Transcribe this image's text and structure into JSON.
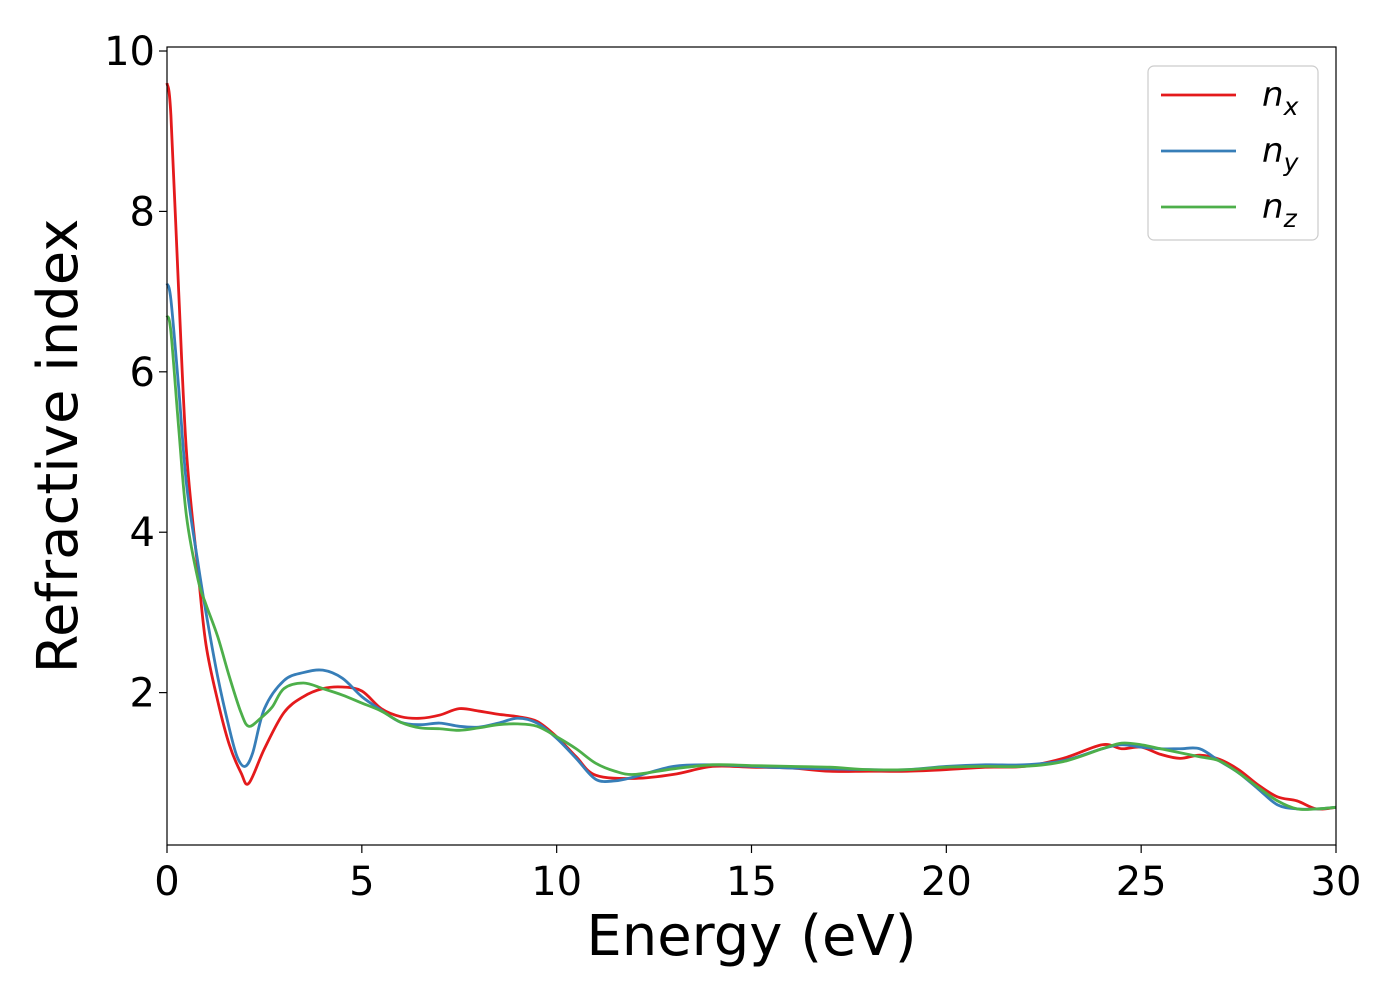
{
  "chart_data": {
    "type": "line",
    "xlabel": "Energy (eV)",
    "ylabel": "Refractive index",
    "xlim": [
      0,
      30
    ],
    "ylim": [
      0.1,
      10.05
    ],
    "xticks": [
      0,
      5,
      10,
      15,
      20,
      25,
      30
    ],
    "yticks": [
      2,
      4,
      6,
      8,
      10
    ],
    "grid": false,
    "legend_position": "top-right",
    "series": [
      {
        "name": "n",
        "subscript": "x",
        "color": "#e41a1c",
        "x": [
          0,
          0.1,
          0.3,
          0.5,
          0.8,
          1.0,
          1.3,
          1.6,
          1.9,
          2.1,
          2.5,
          3.0,
          3.5,
          4.0,
          4.5,
          5.0,
          5.5,
          6.0,
          6.5,
          7.0,
          7.5,
          8.0,
          8.5,
          9.0,
          9.5,
          10.0,
          10.5,
          11.0,
          12.0,
          13.0,
          14.0,
          15.0,
          16.0,
          17.0,
          18.0,
          19.0,
          20.0,
          21.0,
          22.0,
          23.0,
          24.0,
          24.5,
          25.0,
          25.5,
          26.0,
          26.5,
          27.0,
          27.5,
          28.0,
          28.5,
          29.0,
          29.5,
          30.0
        ],
        "y": [
          9.6,
          9.2,
          7.0,
          5.0,
          3.5,
          2.6,
          1.9,
          1.35,
          1.0,
          0.87,
          1.3,
          1.75,
          1.95,
          2.05,
          2.07,
          2.02,
          1.8,
          1.7,
          1.68,
          1.72,
          1.8,
          1.77,
          1.73,
          1.7,
          1.64,
          1.45,
          1.2,
          0.97,
          0.93,
          0.98,
          1.08,
          1.07,
          1.06,
          1.02,
          1.02,
          1.02,
          1.04,
          1.07,
          1.08,
          1.18,
          1.35,
          1.3,
          1.32,
          1.23,
          1.18,
          1.22,
          1.17,
          1.04,
          0.85,
          0.7,
          0.65,
          0.55,
          0.57
        ]
      },
      {
        "name": "n",
        "subscript": "y",
        "color": "#377eb8",
        "x": [
          0,
          0.1,
          0.3,
          0.5,
          0.8,
          1.0,
          1.3,
          1.6,
          1.8,
          2.0,
          2.2,
          2.5,
          3.0,
          3.5,
          4.0,
          4.5,
          5.0,
          5.5,
          6.0,
          6.5,
          7.0,
          7.5,
          8.0,
          8.5,
          9.0,
          9.5,
          10.0,
          10.5,
          11.0,
          11.5,
          12.0,
          13.0,
          14.0,
          15.0,
          16.0,
          17.0,
          18.0,
          19.0,
          20.0,
          21.0,
          22.0,
          23.0,
          24.0,
          24.5,
          25.0,
          25.5,
          26.0,
          26.5,
          27.0,
          27.5,
          28.0,
          28.5,
          29.0,
          29.5,
          30.0
        ],
        "y": [
          7.1,
          6.9,
          5.8,
          4.6,
          3.6,
          3.0,
          2.2,
          1.55,
          1.2,
          1.08,
          1.25,
          1.8,
          2.15,
          2.25,
          2.28,
          2.18,
          1.95,
          1.78,
          1.63,
          1.6,
          1.62,
          1.58,
          1.57,
          1.62,
          1.68,
          1.62,
          1.43,
          1.18,
          0.92,
          0.9,
          0.95,
          1.08,
          1.1,
          1.08,
          1.06,
          1.05,
          1.04,
          1.04,
          1.08,
          1.1,
          1.1,
          1.15,
          1.3,
          1.35,
          1.32,
          1.3,
          1.3,
          1.3,
          1.15,
          1.0,
          0.8,
          0.6,
          0.55,
          0.55,
          0.57
        ]
      },
      {
        "name": "n",
        "subscript": "z",
        "color": "#4daf4a",
        "x": [
          0,
          0.1,
          0.3,
          0.5,
          0.8,
          1.0,
          1.3,
          1.6,
          1.9,
          2.1,
          2.4,
          2.7,
          3.0,
          3.5,
          4.0,
          4.5,
          5.0,
          5.5,
          6.0,
          6.5,
          7.0,
          7.5,
          8.0,
          8.5,
          9.0,
          9.5,
          10.0,
          10.5,
          11.0,
          11.5,
          12.0,
          13.0,
          14.0,
          15.0,
          16.0,
          17.0,
          18.0,
          19.0,
          20.0,
          21.0,
          22.0,
          23.0,
          24.0,
          24.5,
          25.0,
          25.5,
          26.0,
          26.5,
          27.0,
          27.5,
          28.0,
          28.5,
          29.0,
          29.5,
          30.0
        ],
        "y": [
          6.7,
          6.5,
          5.3,
          4.2,
          3.4,
          3.1,
          2.7,
          2.2,
          1.75,
          1.58,
          1.68,
          1.82,
          2.05,
          2.12,
          2.05,
          1.97,
          1.87,
          1.77,
          1.63,
          1.56,
          1.55,
          1.53,
          1.56,
          1.6,
          1.61,
          1.58,
          1.45,
          1.3,
          1.12,
          1.02,
          0.98,
          1.05,
          1.1,
          1.09,
          1.08,
          1.07,
          1.04,
          1.04,
          1.07,
          1.08,
          1.08,
          1.14,
          1.3,
          1.37,
          1.35,
          1.3,
          1.25,
          1.2,
          1.15,
          1.0,
          0.82,
          0.65,
          0.55,
          0.55,
          0.57
        ]
      }
    ]
  }
}
